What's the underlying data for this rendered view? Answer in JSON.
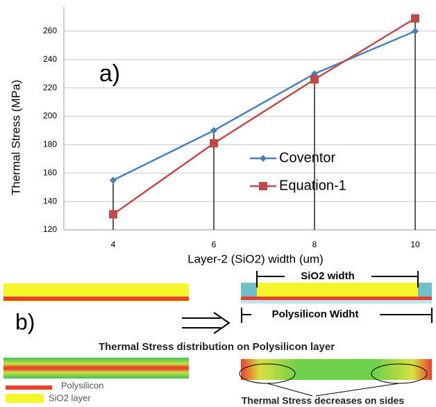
{
  "chart_data": {
    "type": "line",
    "annotation": "a)",
    "y_label": "Thermal Stress (MPa)",
    "x_label": "Layer-2 (SiO2) width (um)",
    "categories": [
      "4",
      "6",
      "8",
      "10"
    ],
    "series": [
      {
        "name": "Coventor",
        "color": "#4a7ebb",
        "marker": "diamond",
        "values": [
          155,
          190,
          230,
          260
        ]
      },
      {
        "name": "Equation-1",
        "color": "#be4b48",
        "marker": "square",
        "values": [
          131,
          181,
          226,
          269
        ]
      }
    ],
    "ylim": [
      120,
      280
    ],
    "yticks": [
      120,
      140,
      160,
      180,
      200,
      220,
      240,
      260
    ],
    "grid": true,
    "drop_lines": true,
    "legend": "center-right"
  },
  "figure_b": {
    "label": "b)",
    "sio2_width": "SiO2 width",
    "polysilicon_width": "Polysilicon Widht",
    "caption": "Thermal Stress distribution on Polysilicon layer",
    "legend": [
      "Polysilicon",
      "SiO2 layer"
    ],
    "note": "Thermal Stress decreases on sides"
  }
}
